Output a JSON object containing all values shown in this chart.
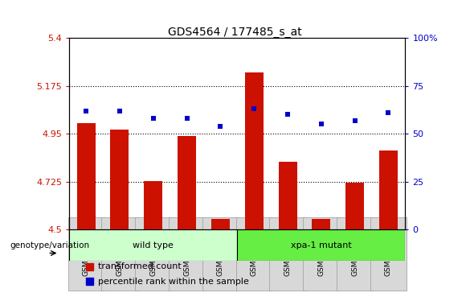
{
  "title": "GDS4564 / 177485_s_at",
  "samples": [
    "GSM958827",
    "GSM958828",
    "GSM958829",
    "GSM958830",
    "GSM958831",
    "GSM958832",
    "GSM958833",
    "GSM958834",
    "GSM958835",
    "GSM958836"
  ],
  "bar_values": [
    5.0,
    4.97,
    4.73,
    4.94,
    4.55,
    5.24,
    4.82,
    4.55,
    4.72,
    4.87
  ],
  "dot_values": [
    62,
    62,
    58,
    58,
    54,
    63,
    60,
    55,
    57,
    61
  ],
  "bar_color": "#cc1100",
  "dot_color": "#0000cc",
  "ylim_left": [
    4.5,
    5.4
  ],
  "ylim_right": [
    0,
    100
  ],
  "yticks_left": [
    4.5,
    4.725,
    4.95,
    5.175,
    5.4
  ],
  "ytick_labels_left": [
    "4.5",
    "4.725",
    "4.95",
    "5.175",
    "5.4"
  ],
  "yticks_right": [
    0,
    25,
    50,
    75,
    100
  ],
  "ytick_labels_right": [
    "0",
    "25",
    "50",
    "75",
    "100%"
  ],
  "hlines": [
    4.725,
    4.95,
    5.175
  ],
  "groups": [
    {
      "label": "wild type",
      "start": 0,
      "end": 4,
      "color": "#ccffcc"
    },
    {
      "label": "xpa-1 mutant",
      "start": 5,
      "end": 9,
      "color": "#66ee44"
    }
  ],
  "group_label": "genotype/variation",
  "legend_items": [
    {
      "color": "#cc1100",
      "label": "transformed count"
    },
    {
      "color": "#0000cc",
      "label": "percentile rank within the sample"
    }
  ],
  "bar_width": 0.55,
  "background_color": "#ffffff",
  "plot_bg_color": "#ffffff",
  "title_fontsize": 10,
  "tick_fontsize": 8,
  "label_fontsize": 8,
  "legend_fontsize": 8
}
